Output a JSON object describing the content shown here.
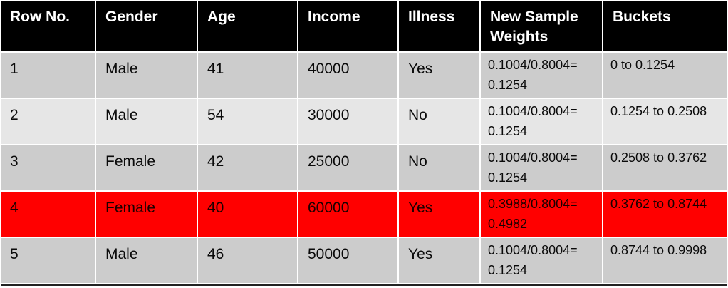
{
  "colors": {
    "header_bg": "#000000",
    "header_text": "#ffffff",
    "row_odd_bg": "#cccccc",
    "row_even_bg": "#e6e6e6",
    "highlight_bg": "#ff0000"
  },
  "table": {
    "headers": [
      "Row No.",
      "Gender",
      "Age",
      "Income",
      "Illness",
      "New Sample Weights",
      "Buckets"
    ],
    "rows": [
      {
        "row_no": "1",
        "gender": "Male",
        "age": "41",
        "income": "40000",
        "illness": "Yes",
        "weight": "0.1004/0.8004= 0.1254",
        "bucket": "0 to 0.1254",
        "highlight": false
      },
      {
        "row_no": "2",
        "gender": "Male",
        "age": "54",
        "income": "30000",
        "illness": "No",
        "weight": "0.1004/0.8004= 0.1254",
        "bucket": "0.1254 to 0.2508",
        "highlight": false
      },
      {
        "row_no": "3",
        "gender": "Female",
        "age": "42",
        "income": "25000",
        "illness": "No",
        "weight": "0.1004/0.8004= 0.1254",
        "bucket": "0.2508 to 0.3762",
        "highlight": false
      },
      {
        "row_no": "4",
        "gender": "Female",
        "age": "40",
        "income": "60000",
        "illness": "Yes",
        "weight": "0.3988/0.8004= 0.4982",
        "bucket": "0.3762 to 0.8744",
        "highlight": true
      },
      {
        "row_no": "5",
        "gender": "Male",
        "age": "46",
        "income": "50000",
        "illness": "Yes",
        "weight": "0.1004/0.8004= 0.1254",
        "bucket": "0.8744 to 0.9998",
        "highlight": false
      }
    ]
  }
}
